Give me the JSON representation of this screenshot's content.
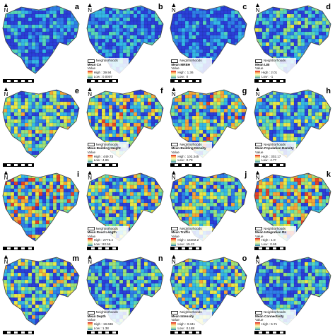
{
  "panels": [
    {
      "letter": "a",
      "title": "",
      "high": "",
      "low": "",
      "neighborhoods": "",
      "heat": 0.15
    },
    {
      "letter": "b",
      "title": "Mean CA",
      "high": "39.94",
      "low": "0.0007",
      "neighborhoods": "Neighborhoods",
      "heat": 0.12
    },
    {
      "letter": "c",
      "title": "Mean MRBH",
      "high": "1.36",
      "low": "0",
      "neighborhoods": "Neighborhoods",
      "heat": 0.05
    },
    {
      "letter": "d",
      "title": "Mean LBI",
      "high": "2.01",
      "low": "-1",
      "neighborhoods": "Neighborhoods",
      "heat": 0.3
    },
    {
      "letter": "e",
      "title": "",
      "high": "",
      "low": "",
      "neighborhoods": "",
      "heat": 0.5
    },
    {
      "letter": "f",
      "title": "Mean Building Height",
      "high": "449.73",
      "low": "4.86",
      "neighborhoods": "Neighborhoods",
      "heat": 0.55
    },
    {
      "letter": "g",
      "title": "Mean Building Density",
      "high": "102.345",
      "low": "0.78",
      "neighborhoods": "Neighborhoods",
      "heat": 0.55
    },
    {
      "letter": "h",
      "title": "Mean Population Density",
      "high": "302.17",
      "low": "4.77",
      "neighborhoods": "Neighborhoods",
      "heat": 0.45
    },
    {
      "letter": "i",
      "title": "",
      "high": "",
      "low": "",
      "neighborhoods": "",
      "heat": 0.6
    },
    {
      "letter": "",
      "title": "Mean Road Length",
      "high": "2776.4",
      "low": "82.56",
      "neighborhoods": "Neighborhoods",
      "heat": 0.5
    },
    {
      "letter": "j",
      "title": "Mean Traffic",
      "high": "15402.2",
      "low": "15.23",
      "neighborhoods": "Neighborhoods",
      "heat": 0.5
    },
    {
      "letter": "k",
      "title": "Mean Integration Rn",
      "high": "1.9",
      "low": "0.65",
      "neighborhoods": "Neighborhoods",
      "heat": 0.6
    },
    {
      "letter": "m",
      "title": "",
      "high": "",
      "low": "",
      "neighborhoods": "",
      "heat": 0.45
    },
    {
      "letter": "n",
      "title": "Mean Depth",
      "high": "19.636",
      "low": "1.38",
      "neighborhoods": "Neighborhoods",
      "heat": 0.3
    },
    {
      "letter": "o",
      "title": "Mean Intensity",
      "high": "0.341",
      "low": "0.188",
      "neighborhoods": "Neighborhoods",
      "heat": 0.45
    },
    {
      "letter": "",
      "title": "Mean Connectivity",
      "high": "5.71",
      "low": "",
      "neighborhoods": "Neighborhoods",
      "heat": 0.3
    }
  ],
  "legend_value_label": "Value",
  "legend_high_prefix": "High : ",
  "legend_low_prefix": "Low : ",
  "north_label": "N",
  "colors": [
    "#2b3fd9",
    "#2f7fe8",
    "#35b8e6",
    "#59d6b8",
    "#9ee27a",
    "#e8e84a",
    "#f4a53a",
    "#e0432a"
  ]
}
